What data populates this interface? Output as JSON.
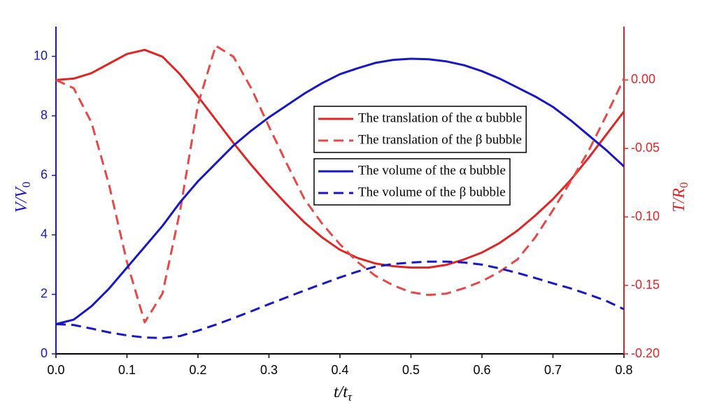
{
  "chart_data": {
    "type": "line",
    "xlabel": {
      "main": "t/t",
      "sub": "τ"
    },
    "ylabel": {
      "main": "V/V",
      "sub": "0"
    },
    "y2label": {
      "main": "T/R",
      "sub": "0"
    },
    "x": [
      0,
      0.025,
      0.05,
      0.075,
      0.1,
      0.125,
      0.15,
      0.175,
      0.2,
      0.225,
      0.25,
      0.275,
      0.3,
      0.325,
      0.35,
      0.375,
      0.4,
      0.425,
      0.45,
      0.475,
      0.5,
      0.525,
      0.55,
      0.575,
      0.6,
      0.625,
      0.65,
      0.675,
      0.7,
      0.725,
      0.75,
      0.775,
      0.8
    ],
    "series": [
      {
        "name": "The translation of the α bubble",
        "color": "#e02424",
        "dash": false,
        "axis": "y2",
        "values": [
          0,
          0.001,
          0.005,
          0.012,
          0.019,
          0.022,
          0.017,
          0.004,
          -0.012,
          -0.029,
          -0.046,
          -0.062,
          -0.077,
          -0.091,
          -0.104,
          -0.115,
          -0.124,
          -0.13,
          -0.134,
          -0.136,
          -0.137,
          -0.137,
          -0.135,
          -0.131,
          -0.126,
          -0.119,
          -0.11,
          -0.099,
          -0.087,
          -0.073,
          -0.057,
          -0.04,
          -0.023
        ]
      },
      {
        "name": "The translation of the β bubble",
        "color": "#e64848",
        "dash": true,
        "axis": "y2",
        "values": [
          0,
          -0.006,
          -0.031,
          -0.077,
          -0.133,
          -0.177,
          -0.156,
          -0.095,
          -0.018,
          0.025,
          0.017,
          -0.006,
          -0.034,
          -0.061,
          -0.087,
          -0.105,
          -0.12,
          -0.133,
          -0.143,
          -0.15,
          -0.155,
          -0.157,
          -0.156,
          -0.152,
          -0.147,
          -0.14,
          -0.131,
          -0.115,
          -0.095,
          -0.074,
          -0.052,
          -0.026,
          0.001
        ]
      },
      {
        "name": "The volume of the α bubble",
        "color": "#1717c8",
        "dash": false,
        "axis": "y",
        "values": [
          1.0,
          1.15,
          1.6,
          2.2,
          2.9,
          3.6,
          4.3,
          5.1,
          5.8,
          6.4,
          7.0,
          7.5,
          7.95,
          8.35,
          8.75,
          9.1,
          9.4,
          9.6,
          9.78,
          9.88,
          9.92,
          9.9,
          9.83,
          9.7,
          9.5,
          9.25,
          8.95,
          8.65,
          8.3,
          7.85,
          7.35,
          6.85,
          6.3
        ]
      },
      {
        "name": "The volume of the β bubble",
        "color": "#1717c8",
        "dash": true,
        "axis": "y",
        "values": [
          1.0,
          0.97,
          0.85,
          0.72,
          0.62,
          0.55,
          0.53,
          0.6,
          0.78,
          0.98,
          1.2,
          1.43,
          1.67,
          1.9,
          2.13,
          2.35,
          2.57,
          2.77,
          2.93,
          3.02,
          3.07,
          3.1,
          3.1,
          3.07,
          3.0,
          2.87,
          2.72,
          2.55,
          2.37,
          2.2,
          2.0,
          1.78,
          1.5
        ]
      }
    ],
    "xlim": [
      0,
      0.8
    ],
    "xticks": [
      {
        "value": 0,
        "label": "0.0"
      },
      {
        "value": 0.1,
        "label": "0.1"
      },
      {
        "value": 0.2,
        "label": "0.2"
      },
      {
        "value": 0.3,
        "label": "0.3"
      },
      {
        "value": 0.4,
        "label": "0.4"
      },
      {
        "value": 0.5,
        "label": "0.5"
      },
      {
        "value": 0.6,
        "label": "0.6"
      },
      {
        "value": 0.7,
        "label": "0.7"
      },
      {
        "value": 0.8,
        "label": "0.8"
      }
    ],
    "ylim": [
      0,
      11
    ],
    "yticks": [
      0,
      2,
      4,
      6,
      8,
      10
    ],
    "y2lim": [
      -0.2,
      0.039
    ],
    "y2ticks": [
      {
        "value": 0,
        "label": "0.00"
      },
      {
        "value": -0.05,
        "label": "-0.05"
      },
      {
        "value": -0.1,
        "label": "-0.10"
      },
      {
        "value": -0.15,
        "label": "-0.15"
      },
      {
        "value": -0.2,
        "label": "-0.20"
      }
    ],
    "yaxis_color": "#1717c8",
    "y2axis_color": "#e02424"
  }
}
